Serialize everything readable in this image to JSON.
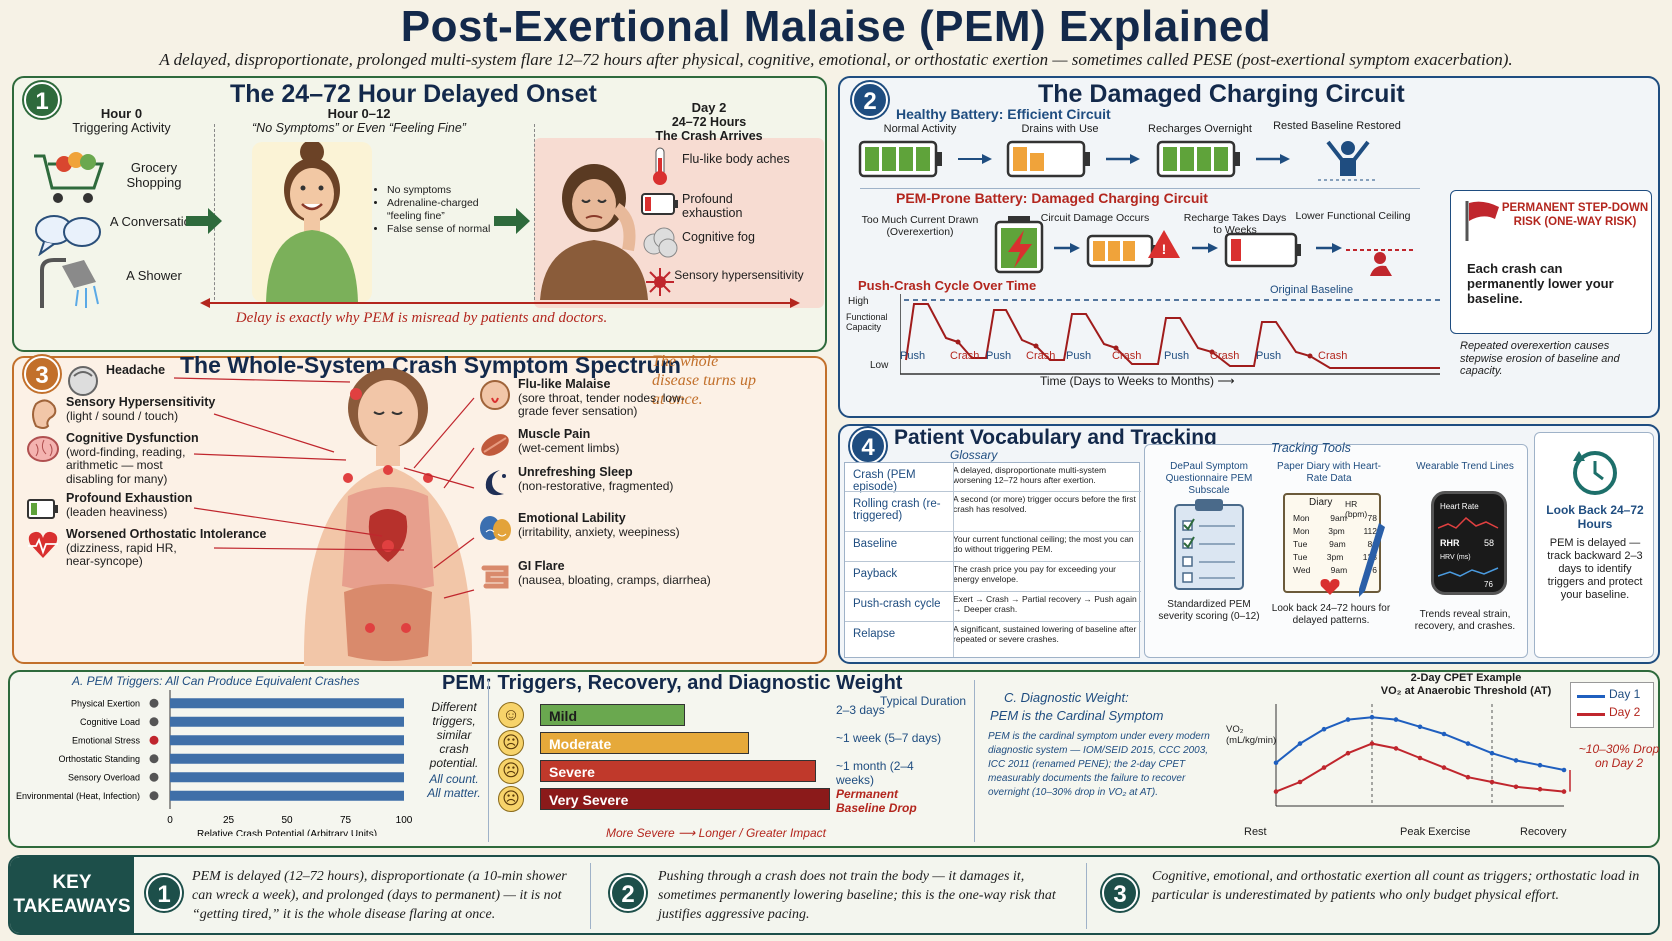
{
  "header": {
    "title": "Post-Exertional Malaise (PEM) Explained",
    "subtitle": "A delayed, disproportionate, prolonged multi-system flare 12–72 hours after physical, cognitive, emotional, or orthostatic exertion — sometimes called PESE (post-exertional symptom exacerbation)."
  },
  "panel1": {
    "number": "1",
    "title": "The 24–72 Hour Delayed Onset",
    "col1_head": "Hour 0",
    "col1_sub": "Triggering Activity",
    "col2_head": "Hour 0–12",
    "col2_sub": "“No Symptoms” or Even “Feeling Fine”",
    "col3_head": "Day 2",
    "col3_sub1": "24–72 Hours",
    "col3_sub2": "The Crash Arrives",
    "triggers": [
      "Grocery Shopping",
      "A Conversation",
      "A Shower"
    ],
    "fine_points": [
      "No symptoms",
      "Adrenaline-charged “feeling fine”",
      "False sense of normal"
    ],
    "crash_symptoms": [
      "Flu-like body aches",
      "Profound exhaustion",
      "Cognitive fog",
      "Sensory hypersensitivity"
    ],
    "footer": "Delay is exactly why PEM is misread by patients and doctors."
  },
  "panel2": {
    "number": "2",
    "title": "The Damaged Charging Circuit",
    "healthy_title": "Healthy Battery: Efficient Circuit",
    "healthy_steps": [
      "Normal Activity",
      "Drains with Use",
      "Recharges Overnight",
      "Rested Baseline Restored"
    ],
    "prone_title": "PEM-Prone Battery: Damaged Charging Circuit",
    "prone_steps": [
      "Too Much Current Drawn (Overexertion)",
      "Circuit Damage Occurs",
      "Recharge Takes Days to Weeks",
      "Lower Functional Ceiling"
    ],
    "cycle_title": "Push-Crash Cycle Over Time",
    "original_baseline": "Original Baseline",
    "y_high": "High",
    "y_label": "Functional Capacity",
    "y_low": "Low",
    "x_label": "Time (Days to Weeks to Months)",
    "push_label": "Push",
    "crash_label": "Crash",
    "risk_title": "PERMANENT STEP-DOWN RISK (ONE-WAY RISK)",
    "risk_text": "Each crash can permanently lower your baseline.",
    "risk_note": "Repeated overexertion causes stepwise erosion of baseline and capacity."
  },
  "panel3": {
    "number": "3",
    "title": "The Whole-System Crash Symptom Spectrum",
    "quote": "The whole disease turns up at once.",
    "left": [
      {
        "name": "Headache",
        "desc": ""
      },
      {
        "name": "Sensory Hypersensitivity",
        "desc": "(light / sound / touch)"
      },
      {
        "name": "Cognitive Dysfunction",
        "desc": "(word-finding, reading, arithmetic — most disabling for many)"
      },
      {
        "name": "Profound Exhaustion",
        "desc": "(leaden heaviness)"
      },
      {
        "name": "Worsened Orthostatic Intolerance",
        "desc": "(dizziness, rapid HR, near-syncope)"
      }
    ],
    "right": [
      {
        "name": "Flu-like Malaise",
        "desc": "(sore throat, tender nodes, low-grade fever sensation)"
      },
      {
        "name": "Muscle Pain",
        "desc": "(wet-cement limbs)"
      },
      {
        "name": "Unrefreshing Sleep",
        "desc": "(non-restorative, fragmented)"
      },
      {
        "name": "Emotional Lability",
        "desc": "(irritability, anxiety, weepiness)"
      },
      {
        "name": "GI Flare",
        "desc": "(nausea, bloating, cramps, diarrhea)"
      }
    ]
  },
  "panel4": {
    "number": "4",
    "title": "Patient Vocabulary and Tracking",
    "glossary_title": "Glossary",
    "glossary": [
      {
        "term": "Crash (PEM episode)",
        "def": "A delayed, disproportionate multi-system worsening 12–72 hours after exertion."
      },
      {
        "term": "Rolling crash (re-triggered)",
        "def": "A second (or more) trigger occurs before the first crash has resolved."
      },
      {
        "term": "Baseline",
        "def": "Your current functional ceiling; the most you can do without triggering PEM."
      },
      {
        "term": "Payback",
        "def": "The crash price you pay for exceeding your energy envelope."
      },
      {
        "term": "Push-crash cycle",
        "def": "Exert → Crash → Partial recovery → Push again → Deeper crash."
      },
      {
        "term": "Relapse",
        "def": "A significant, sustained lowering of baseline after repeated or severe crashes."
      }
    ],
    "tools_title": "Tracking Tools",
    "tool1_title": "DePaul Symptom Questionnaire PEM Subscale",
    "tool1_caption": "Standardized PEM severity scoring (0–12)",
    "tool2_title": "Paper Diary with Heart-Rate Data",
    "tool2_caption": "Look back 24–72 hours for delayed patterns.",
    "diary_head": "Diary",
    "diary_hr": "HR (bpm)",
    "diary_rows": [
      [
        "Mon",
        "9am",
        "78"
      ],
      [
        "Mon",
        "3pm",
        "112"
      ],
      [
        "Tue",
        "9am",
        "86"
      ],
      [
        "Tue",
        "3pm",
        "128"
      ],
      [
        "Wed",
        "9am",
        "76"
      ]
    ],
    "tool3_title": "Wearable Trend Lines",
    "tool3_caption": "Trends reveal strain, recovery, and crashes.",
    "watch_hr": "Heart Rate",
    "watch_rhr": "RHR",
    "watch_rhr_val": "58",
    "watch_hrv": "HRV (ms)",
    "watch_hrv_val": "76",
    "lookback_title": "Look Back 24–72 Hours",
    "lookback_text": "PEM is delayed — track backward 2–3 days to identify triggers and protect your baseline."
  },
  "panel5": {
    "main_title": "PEM: Triggers, Recovery, and Diagnostic Weight",
    "a_title": "A. PEM Triggers: All Can Produce Equivalent Crashes",
    "a_note1": "Different triggers, similar crash potential.",
    "a_note2": "All count. All matter.",
    "a_xlabel": "Relative Crash Potential (Arbitrary Units)",
    "severity_head": "Typical Duration",
    "severity": [
      {
        "label": "Mild",
        "duration": "2–3 days",
        "color": "#6aa84f",
        "level": 0.5
      },
      {
        "label": "Moderate",
        "duration": "~1 week (5–7 days)",
        "color": "#e6a93a",
        "level": 0.72
      },
      {
        "label": "Severe",
        "duration": "~1 month (2–4 weeks)",
        "color": "#c0392b",
        "level": 0.95
      },
      {
        "label": "Very Severe",
        "duration": "Permanent Baseline Drop",
        "color": "#8b1a1a",
        "level": 1.0
      }
    ],
    "severity_footer_a": "More Severe",
    "severity_footer_b": "Longer / Greater Impact",
    "c_title1": "C. Diagnostic Weight:",
    "c_title2": "PEM is the Cardinal Symptom",
    "c_text": "PEM is the cardinal symptom under every modern diagnostic system — IOM/SEID 2015, CCC 2003, ICC 2011 (renamed PENE); the 2-day CPET measurably documents the failure to recover overnight (10–30% drop in VO₂ at AT).",
    "cpet_title": "2-Day CPET Example",
    "cpet_sub": "VO₂ at Anaerobic Threshold (AT)",
    "cpet_ylabel": "VO₂ (mL/kg/min)",
    "cpet_drop": "~10–30% Drop on Day 2",
    "cpet_x_labels": [
      "Rest",
      "Peak Exercise",
      "Recovery"
    ]
  },
  "chart_data": [
    {
      "type": "bar",
      "title": "A. PEM Triggers: All Can Produce Equivalent Crashes",
      "orientation": "horizontal",
      "categories": [
        "Physical Exertion",
        "Cognitive Load",
        "Emotional Stress",
        "Orthostatic Standing",
        "Sensory Overload",
        "Environmental (Heat, Infection)"
      ],
      "values": [
        100,
        100,
        100,
        100,
        100,
        100
      ],
      "xlabel": "Relative Crash Potential (Arbitrary Units)",
      "xlim": [
        0,
        100
      ],
      "xticks": [
        0,
        25,
        50,
        75,
        100
      ]
    },
    {
      "type": "line",
      "title": "2-Day CPET Example",
      "ylabel": "VO₂ (mL/kg/min)",
      "ylim": [
        10,
        30
      ],
      "yticks": [
        10,
        15,
        20,
        25,
        30
      ],
      "x": [
        0,
        1,
        2,
        3,
        4,
        5,
        6,
        7,
        8,
        9,
        10,
        11,
        12
      ],
      "series": [
        {
          "name": "Day 1",
          "color": "#1f5fbf",
          "values": [
            19,
            23,
            26,
            28,
            28.5,
            28,
            26.5,
            25,
            23,
            21,
            19.5,
            18.5,
            17.5
          ]
        },
        {
          "name": "Day 2",
          "color": "#c0262d",
          "values": [
            13,
            15,
            18,
            21,
            23,
            22,
            20,
            18,
            16,
            15,
            14,
            13.5,
            13
          ]
        }
      ]
    }
  ],
  "takeaways": {
    "label": "KEY TAKEAWAYS",
    "items": [
      {
        "n": "1",
        "text": "PEM is delayed (12–72 hours), disproportionate (a 10-min shower can wreck a week), and prolonged (days to permanent) — it is not “getting tired,” it is the whole disease flaring at once."
      },
      {
        "n": "2",
        "text": "Pushing through a crash does not train the body — it damages it, sometimes permanently lowering baseline; this is the one-way risk that justifies aggressive pacing."
      },
      {
        "n": "3",
        "text": "Cognitive, emotional, and orthostatic exertion all count as triggers; orthostatic load in particular is underestimated by patients who only budget physical effort."
      }
    ]
  }
}
